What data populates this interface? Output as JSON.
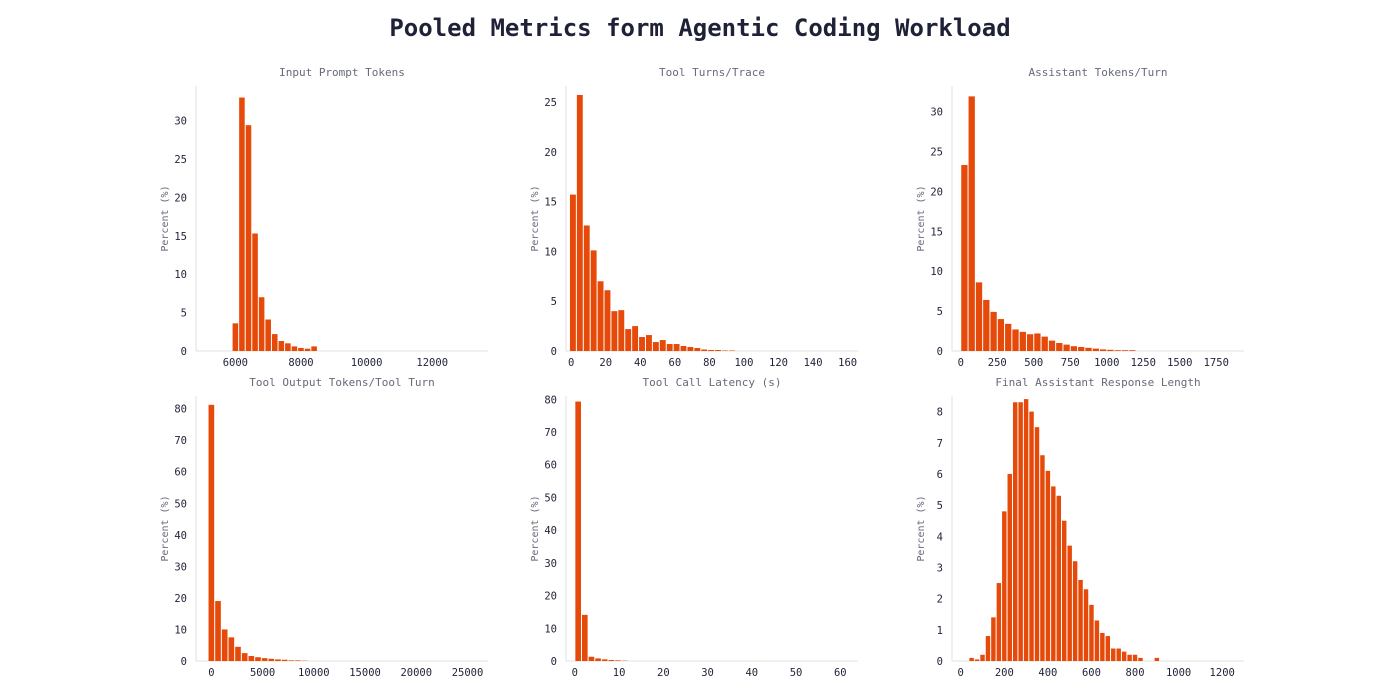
{
  "title": "Pooled Metrics form Agentic Coding Workload",
  "colors": {
    "bar": "#e64a0a",
    "text": "#1f2237",
    "subtext": "#666a7a",
    "axis": "#e2e2e2"
  },
  "chart_data": [
    {
      "type": "bar",
      "title": "Input Prompt Tokens",
      "ylabel": "Percent (%)",
      "xlim": [
        4800,
        13700
      ],
      "ylim": [
        0,
        34.5
      ],
      "xticks": [
        6000,
        8000,
        10000,
        12000
      ],
      "yticks": [
        0,
        5,
        10,
        15,
        20,
        25,
        30
      ],
      "bin_width": 200,
      "bins": [
        6000,
        6200,
        6400,
        6600,
        6800,
        7000,
        7200,
        7400,
        7600,
        7800,
        8000,
        8200,
        8400,
        8600
      ],
      "values": [
        3.6,
        33.0,
        29.4,
        15.3,
        7.0,
        4.1,
        2.2,
        1.3,
        1.0,
        0.6,
        0.4,
        0.3,
        0.6,
        0
      ]
    },
    {
      "type": "bar",
      "title": "Tool Turns/Trace",
      "ylabel": "Percent (%)",
      "xlim": [
        -3,
        166
      ],
      "ylim": [
        0,
        26.6
      ],
      "xticks": [
        0,
        20,
        40,
        60,
        80,
        100,
        120,
        140,
        160
      ],
      "yticks": [
        0,
        5,
        10,
        15,
        20,
        25
      ],
      "bin_width": 4,
      "bins": [
        1,
        5,
        9,
        13,
        17,
        21,
        25,
        29,
        33,
        37,
        41,
        45,
        49,
        53,
        57,
        61,
        65,
        69,
        73,
        77,
        81,
        85,
        89,
        93
      ],
      "values": [
        15.7,
        25.7,
        12.6,
        10.1,
        7.0,
        6.1,
        4.0,
        4.1,
        2.2,
        2.5,
        1.4,
        1.6,
        0.9,
        1.1,
        0.7,
        0.7,
        0.5,
        0.4,
        0.3,
        0.15,
        0.1,
        0.1,
        0.05,
        0.05
      ]
    },
    {
      "type": "bar",
      "title": "Assistant Tokens/Turn",
      "ylabel": "Percent (%)",
      "xlim": [
        -60,
        1940
      ],
      "ylim": [
        0,
        33.2
      ],
      "xticks": [
        0,
        250,
        500,
        750,
        1000,
        1250,
        1500,
        1750
      ],
      "yticks": [
        0,
        5,
        10,
        15,
        20,
        25,
        30
      ],
      "bin_width": 50,
      "bins": [
        25,
        75,
        125,
        175,
        225,
        275,
        325,
        375,
        425,
        475,
        525,
        575,
        625,
        675,
        725,
        775,
        825,
        875,
        925,
        975,
        1025,
        1075,
        1125,
        1175
      ],
      "values": [
        23.3,
        31.9,
        8.6,
        6.4,
        4.9,
        4.0,
        3.4,
        2.7,
        2.4,
        2.1,
        2.2,
        1.8,
        1.3,
        1.0,
        0.8,
        0.6,
        0.5,
        0.4,
        0.3,
        0.2,
        0.15,
        0.1,
        0.1,
        0.1
      ]
    },
    {
      "type": "bar",
      "title": "Tool Output Tokens/Tool Turn",
      "ylabel": "Percent (%)",
      "xlim": [
        -1500,
        27000
      ],
      "ylim": [
        0,
        84
      ],
      "xticks": [
        0,
        5000,
        10000,
        15000,
        20000,
        25000
      ],
      "yticks": [
        0,
        10,
        20,
        30,
        40,
        50,
        60,
        70,
        80
      ],
      "bin_width": 650,
      "bins": [
        0,
        650,
        1300,
        1950,
        2600,
        3250,
        3900,
        4550,
        5200,
        5850,
        6500,
        7150,
        7800,
        8450,
        9100
      ],
      "values": [
        81.2,
        19.0,
        10.0,
        7.5,
        4.5,
        2.5,
        1.6,
        1.2,
        0.9,
        0.7,
        0.5,
        0.4,
        0.2,
        0.2,
        0.1
      ]
    },
    {
      "type": "bar",
      "title": "Tool Call Latency (s)",
      "ylabel": "Percent (%)",
      "xlim": [
        -2,
        64
      ],
      "ylim": [
        0,
        81
      ],
      "xticks": [
        0,
        10,
        20,
        30,
        40,
        50,
        60
      ],
      "yticks": [
        0,
        10,
        20,
        30,
        40,
        50,
        60,
        70,
        80
      ],
      "bin_width": 1.5,
      "bins": [
        0.75,
        2.25,
        3.75,
        5.25,
        6.75,
        8.25,
        9.75,
        11.25
      ],
      "values": [
        79.3,
        14.1,
        1.3,
        0.8,
        0.5,
        0.3,
        0.2,
        0.1
      ]
    },
    {
      "type": "bar",
      "title": "Final Assistant Response Length",
      "ylabel": "Percent (%)",
      "xlim": [
        -40,
        1300
      ],
      "ylim": [
        0,
        8.5
      ],
      "xticks": [
        0,
        200,
        400,
        600,
        800,
        1000,
        1200
      ],
      "yticks": [
        0,
        1,
        2,
        3,
        4,
        5,
        6,
        7,
        8
      ],
      "bin_width": 25,
      "bins": [
        50,
        75,
        100,
        125,
        150,
        175,
        200,
        225,
        250,
        275,
        300,
        325,
        350,
        375,
        400,
        425,
        450,
        475,
        500,
        525,
        550,
        575,
        600,
        625,
        650,
        675,
        700,
        725,
        750,
        775,
        800,
        825,
        850,
        875,
        900,
        925,
        950,
        975,
        1000,
        1025,
        1050,
        1075,
        1100,
        1125,
        1150,
        1175
      ],
      "values": [
        0.1,
        0.05,
        0.2,
        0.8,
        1.4,
        2.5,
        4.8,
        6.0,
        8.3,
        8.3,
        8.4,
        8.0,
        7.5,
        6.6,
        6.1,
        5.6,
        5.3,
        4.5,
        3.7,
        3.2,
        2.6,
        2.3,
        1.8,
        1.3,
        0.9,
        0.8,
        0.4,
        0.4,
        0.3,
        0.2,
        0.2,
        0.1,
        0,
        0,
        0.1,
        0,
        0,
        0,
        0,
        0,
        0,
        0,
        0,
        0,
        0,
        0
      ]
    }
  ]
}
